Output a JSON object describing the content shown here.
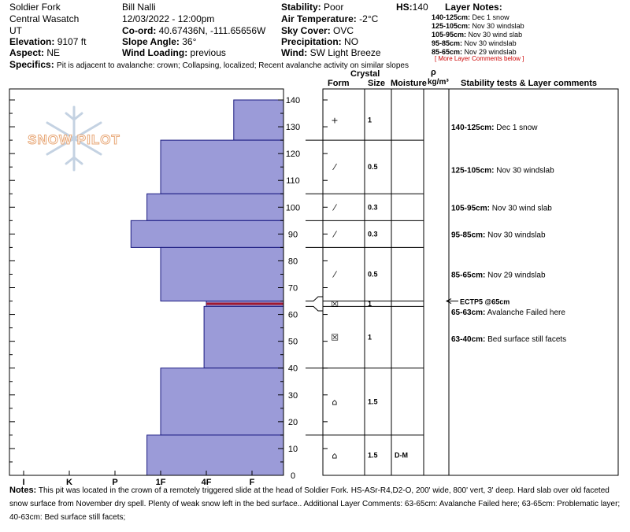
{
  "header": {
    "col1": {
      "location": "Soldier Fork",
      "range": "Central Wasatch",
      "state": "UT",
      "elevation_label": "Elevation:",
      "elevation_value": "9107 ft",
      "aspect_label": "Aspect:",
      "aspect_value": "NE"
    },
    "col2": {
      "observer": "Bill Nalli",
      "datetime": "12/03/2022 - 12:00pm",
      "coord_label": "Co-ord:",
      "coord_value": "40.67436N, -111.65656W",
      "slope_label": "Slope Angle:",
      "slope_value": "36°",
      "wind_loading_label": "Wind Loading:",
      "wind_loading_value": "previous"
    },
    "col3": {
      "stability_label": "Stability:",
      "stability_value": "Poor",
      "air_temp_label": "Air Temperature:",
      "air_temp_value": "-2°C",
      "sky_label": "Sky Cover:",
      "sky_value": "OVC",
      "precip_label": "Precipitation:",
      "precip_value": "NO",
      "wind_label": "Wind:",
      "wind_value": "SW Light Breeze"
    },
    "hs_label": "HS:",
    "hs_value": "140",
    "layer_notes": {
      "title": "Layer Notes:",
      "items": [
        {
          "range": "140-125cm:",
          "text": "Dec 1 snow"
        },
        {
          "range": "125-105cm:",
          "text": "Nov 30 windslab"
        },
        {
          "range": "105-95cm:",
          "text": "Nov 30 wind slab"
        },
        {
          "range": "95-85cm:",
          "text": "Nov 30 windslab"
        },
        {
          "range": "85-65cm:",
          "text": "Nov 29 windslab"
        }
      ],
      "more": "[ More Layer Comments below ]"
    },
    "specifics_label": "Specifics:",
    "specifics_value": "Pit is adjacent to avalanche: crown; Collapsing, localized; Recent avalanche activity on similar slopes"
  },
  "logo": {
    "text": "SNOW PILOT"
  },
  "columns": {
    "crystal": "Crystal",
    "form": "Form",
    "size": "Size",
    "moisture": "Moisture",
    "rho": "ρ",
    "rho_unit": "kg/m³",
    "stability": "Stability tests & Layer comments"
  },
  "chart_data": {
    "type": "bar",
    "orientation": "horizontal",
    "x_categories": [
      "I",
      "K",
      "P",
      "1F",
      "4F",
      "F"
    ],
    "x_direction": "hardness decreasing to the right",
    "y_ticks": [
      0,
      10,
      20,
      30,
      40,
      50,
      60,
      70,
      80,
      90,
      100,
      110,
      120,
      130,
      140
    ],
    "ylim": [
      0,
      140
    ],
    "ylabel": "",
    "xlabel": "",
    "hardness_layers": [
      {
        "bottom": 125,
        "top": 140,
        "hardness": "F+",
        "level": 5.6
      },
      {
        "bottom": 105,
        "top": 125,
        "hardness": "1F-",
        "level": 4.0
      },
      {
        "bottom": 95,
        "top": 105,
        "hardness": "1F",
        "level": 3.7
      },
      {
        "bottom": 85,
        "top": 95,
        "hardness": "P+",
        "level": 3.35
      },
      {
        "bottom": 65,
        "top": 85,
        "hardness": "1F-",
        "level": 4.0
      },
      {
        "bottom": 63,
        "top": 65,
        "hardness": "4F+",
        "level": 5.0
      },
      {
        "bottom": 40,
        "top": 63,
        "hardness": "4F-",
        "level": 4.95
      },
      {
        "bottom": 15,
        "top": 40,
        "hardness": "1F-",
        "level": 4.0
      },
      {
        "bottom": 0,
        "top": 15,
        "hardness": "1F",
        "level": 3.7
      }
    ],
    "problem_layer_depth": 64,
    "grain_layers": [
      {
        "bottom": 125,
        "top": 140,
        "form": "+",
        "size": "1",
        "moisture": ""
      },
      {
        "bottom": 105,
        "top": 125,
        "form": "⁄",
        "size": "0.5",
        "moisture": ""
      },
      {
        "bottom": 95,
        "top": 105,
        "form": "⁄",
        "size": "0.3",
        "moisture": ""
      },
      {
        "bottom": 85,
        "top": 95,
        "form": "⁄",
        "size": "0.3",
        "moisture": ""
      },
      {
        "bottom": 65,
        "top": 85,
        "form": "⁄",
        "size": "0.5",
        "moisture": ""
      },
      {
        "bottom": 63,
        "top": 65,
        "form": "☒",
        "size": "1",
        "moisture": ""
      },
      {
        "bottom": 40,
        "top": 63,
        "form": "☒",
        "size": "1",
        "moisture": ""
      },
      {
        "bottom": 15,
        "top": 40,
        "form": "⌂",
        "size": "1.5",
        "moisture": ""
      },
      {
        "bottom": 0,
        "top": 15,
        "form": "⌂",
        "size": "1.5",
        "moisture": "D-M"
      }
    ],
    "layer_comments": [
      {
        "depth": 130,
        "range": "140-125cm:",
        "text": "Dec 1 snow"
      },
      {
        "depth": 114,
        "range": "125-105cm:",
        "text": "Nov 30 windslab"
      },
      {
        "depth": 100,
        "range": "105-95cm:",
        "text": "Nov 30 wind slab"
      },
      {
        "depth": 90,
        "range": "95-85cm:",
        "text": "Nov 30 windslab"
      },
      {
        "depth": 75,
        "range": "85-65cm:",
        "text": "Nov 29 windslab"
      },
      {
        "depth": 61,
        "range": "65-63cm:",
        "text": "Avalanche Failed here"
      },
      {
        "depth": 51,
        "range": "63-40cm:",
        "text": "Bed surface still facets"
      }
    ],
    "stability_tests": [
      {
        "depth": 65,
        "text": "ECTP5 @65cm"
      }
    ]
  },
  "notes": {
    "label": "Notes:",
    "text": "This pit was located in the crown of a remotely triggered slide at the head of Soldier Fork. HS-ASr-R4,D2-O, 200' wide, 800' vert, 3' deep. Hard slab over old faceted snow surface from November dry spell. Plenty of weak snow left in the bed surface.. Additional Layer Comments: 63-65cm: Avalanche Failed here; 63-65cm: Problematic layer; 40-63cm: Bed surface still facets;"
  }
}
